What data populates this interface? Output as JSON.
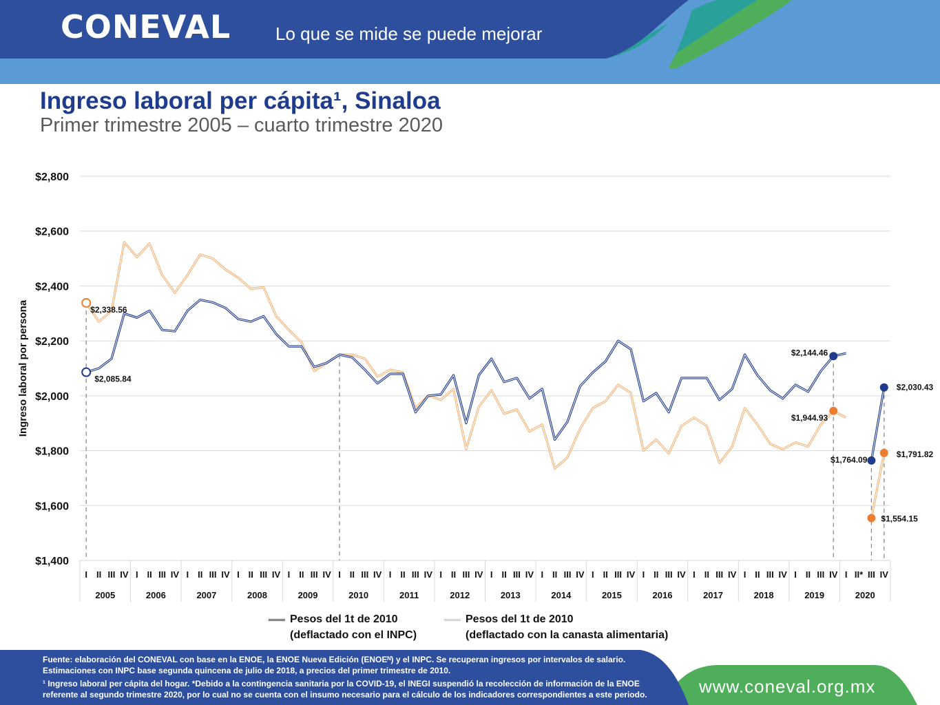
{
  "header": {
    "logo": "CONEVAL",
    "tagline": "Lo que se mide se puede mejorar"
  },
  "colors": {
    "brand_blue": "#2e4f9e",
    "light_blue": "#5b9bd5",
    "teal": "#2aa09b",
    "green": "#4fae5a",
    "series_inpc": "#1f3b8c",
    "series_food": "#f4b47a",
    "marker_food": "#ed7d31"
  },
  "chart_data": {
    "type": "line",
    "title": "Ingreso laboral per cápita¹, Sinaloa",
    "subtitle": "Primer trimestre 2005 – cuarto trimestre 2020",
    "ylabel": "Ingreso laboral por persona",
    "ylim": [
      1400,
      2800
    ],
    "yticks": [
      "$1,400",
      "$1,600",
      "$1,800",
      "$2,000",
      "$2,200",
      "$2,400",
      "$2,600",
      "$2,800"
    ],
    "grid": true,
    "quarter_labels": [
      "I",
      "II",
      "III",
      "IV"
    ],
    "quarter_labels_2020": [
      "I",
      "II*",
      "III",
      "IV"
    ],
    "years": [
      "2005",
      "2006",
      "2007",
      "2008",
      "2009",
      "2010",
      "2011",
      "2012",
      "2013",
      "2014",
      "2015",
      "2016",
      "2017",
      "2018",
      "2019",
      "2020"
    ],
    "series": [
      {
        "name": "Pesos del 1t de 2010 (deflactado con el INPC)",
        "legend_line1": "Pesos del 1t de 2010",
        "legend_line2": "(deflactado con el INPC)",
        "values": [
          2085.84,
          2100,
          2135,
          2300,
          2285,
          2310,
          2240,
          2235,
          2310,
          2350,
          2340,
          2320,
          2280,
          2270,
          2290,
          2225,
          2180,
          2180,
          2105,
          2120,
          2150,
          2140,
          2095,
          2045,
          2080,
          2080,
          1940,
          2000,
          2005,
          2075,
          1900,
          2075,
          2135,
          2050,
          2065,
          1990,
          2025,
          1840,
          1905,
          2035,
          2085,
          2125,
          2200,
          2170,
          1980,
          2010,
          1940,
          2065,
          2065,
          2065,
          1985,
          2025,
          2150,
          2075,
          2020,
          1990,
          2040,
          2015,
          2090,
          2144.46,
          2155,
          null,
          1764.09,
          2030.43
        ]
      },
      {
        "name": "Pesos del 1t de 2010 (deflactado con la canasta alimentaria)",
        "legend_line1": "Pesos del 1t de 2010",
        "legend_line2": "(deflactado con la canasta alimentaria)",
        "values": [
          2338.56,
          2270,
          2310,
          2560,
          2505,
          2555,
          2440,
          2375,
          2440,
          2515,
          2500,
          2460,
          2430,
          2390,
          2395,
          2290,
          2240,
          2195,
          2090,
          2120,
          2150,
          2150,
          2135,
          2070,
          2095,
          2085,
          1955,
          2000,
          1985,
          2025,
          1805,
          1960,
          2020,
          1935,
          1950,
          1870,
          1895,
          1735,
          1775,
          1880,
          1955,
          1980,
          2040,
          2010,
          1800,
          1840,
          1790,
          1890,
          1920,
          1890,
          1755,
          1815,
          1955,
          1895,
          1825,
          1805,
          1830,
          1815,
          1895,
          1944.93,
          1920,
          null,
          1554.15,
          1791.82
        ]
      }
    ],
    "data_labels": [
      {
        "text": "$2,338.56"
      },
      {
        "text": "$2,085.84"
      },
      {
        "text": "$2,144.46"
      },
      {
        "text": "$1,944.93"
      },
      {
        "text": "$2,030.43"
      },
      {
        "text": "$1,764.09"
      },
      {
        "text": "$1,791.82"
      },
      {
        "text": "$1,554.15"
      }
    ]
  },
  "footer": {
    "note1": "Fuente: elaboración del CONEVAL con base en la ENOE, la ENOE Nueva Edición (ENOEᴺ) y el INPC. Se recuperan ingresos por intervalos de salario. Estimaciones con INPC base segunda quincena de julio de 2018, a precios del primer trimestre de 2010.",
    "note2": "¹ Ingreso laboral per cápita del hogar. *Debido a la contingencia sanitaria por la COVID-19, el INEGI suspendió la recolección de información de la ENOE referente al segundo trimestre 2020, por lo cual no se cuenta con el insumo necesario para el cálculo de los indicadores correspondientes a este periodo.",
    "website": "www.coneval.org.mx"
  }
}
